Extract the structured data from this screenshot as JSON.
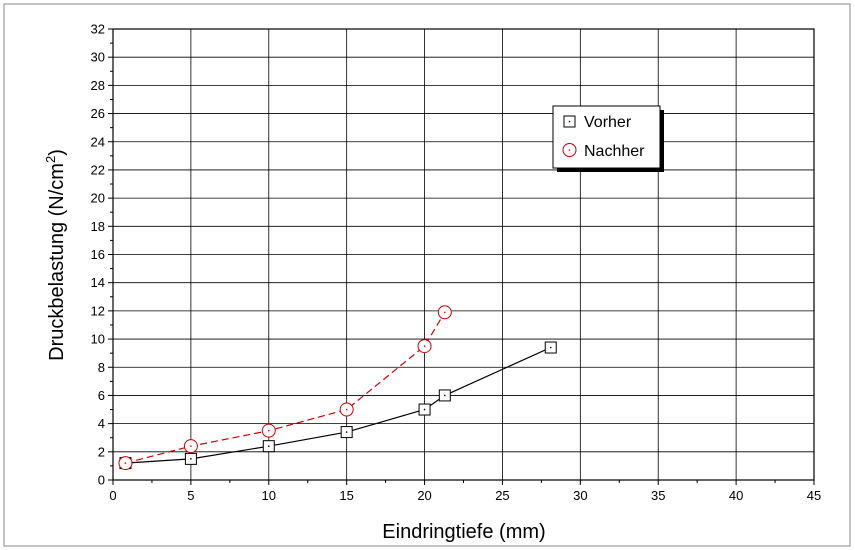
{
  "chart_data": {
    "type": "line",
    "xlabel": "Eindringtiefe (mm)",
    "ylabel_main": "Druckbelastung (N/cm",
    "ylabel_sup": "2",
    "ylabel_end": ")",
    "xlim": [
      0,
      45
    ],
    "ylim": [
      0,
      32
    ],
    "x_ticks": [
      0,
      5,
      10,
      15,
      20,
      25,
      30,
      35,
      40,
      45
    ],
    "y_ticks": [
      0,
      2,
      4,
      6,
      8,
      10,
      12,
      14,
      16,
      18,
      20,
      22,
      24,
      26,
      28,
      30,
      32
    ],
    "grid": true,
    "legend_position": "top-right",
    "series": [
      {
        "name": "Vorher",
        "marker": "square",
        "color": "#000000",
        "line_style": "solid",
        "x": [
          0.8,
          5,
          10,
          15,
          20,
          21.3,
          28.1
        ],
        "y": [
          1.2,
          1.5,
          2.4,
          3.4,
          5.0,
          6.0,
          9.4
        ]
      },
      {
        "name": "Nachher",
        "marker": "circle",
        "color": "#cc0000",
        "line_style": "dashed",
        "x": [
          0.8,
          5,
          10,
          15,
          20,
          21.3
        ],
        "y": [
          1.2,
          2.4,
          3.5,
          5.0,
          9.5,
          11.9
        ]
      }
    ]
  }
}
